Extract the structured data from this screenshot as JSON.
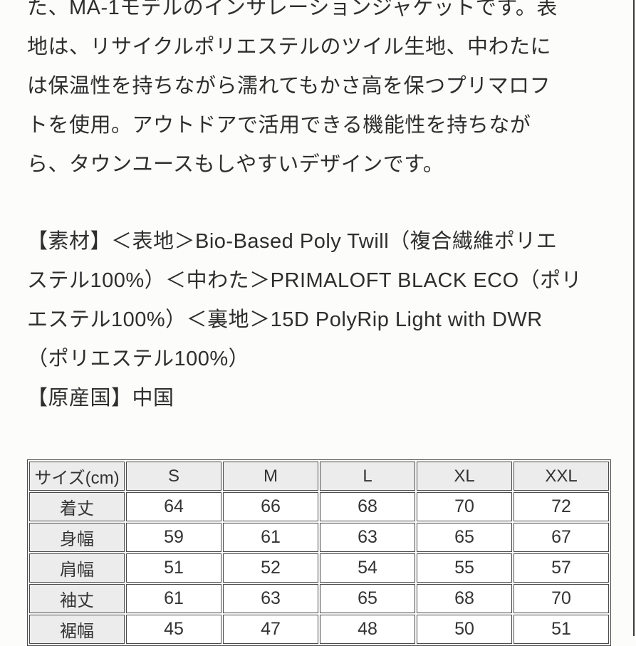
{
  "page": {
    "background_color": "#fcfcfb",
    "text_color": "#2e2e2e",
    "right_edge_line_color": "#3c3c3c"
  },
  "description": {
    "lines": [
      "た、MA-1モデルのインサレーションジャケットです。表",
      "地は、リサイクルポリエステルのツイル生地、中わたに",
      "は保温性を持ちながら濡れてもかさ高を保つプリマロフ",
      "トを使用。アウトドアで活用できる機能性を持ちなが",
      "ら、タウンユースもしやすいデザインです。"
    ]
  },
  "materials": {
    "lines": [
      "【素材】＜表地＞Bio-Based Poly Twill（複合繊維ポリエ",
      "ステル100%）＜中わた＞PRIMALOFT BLACK ECO（ポリ",
      "エステル100%）＜裏地＞15D PolyRip Light with DWR",
      "（ポリエステル100%）"
    ]
  },
  "origin": {
    "text": "【原産国】中国"
  },
  "size_table": {
    "header_bg_color": "#ececec",
    "cell_bg_color": "#ffffff",
    "border_color": "#4c4c4c",
    "header": [
      "サイズ(cm)",
      "S",
      "M",
      "L",
      "XL",
      "XXL"
    ],
    "rows": [
      {
        "label": "着丈",
        "values": [
          "64",
          "66",
          "68",
          "70",
          "72"
        ]
      },
      {
        "label": "身幅",
        "values": [
          "59",
          "61",
          "63",
          "65",
          "67"
        ]
      },
      {
        "label": "肩幅",
        "values": [
          "51",
          "52",
          "54",
          "55",
          "57"
        ]
      },
      {
        "label": "袖丈",
        "values": [
          "61",
          "63",
          "65",
          "68",
          "70"
        ]
      },
      {
        "label": "裾幅",
        "values": [
          "45",
          "47",
          "48",
          "50",
          "51"
        ]
      }
    ]
  }
}
